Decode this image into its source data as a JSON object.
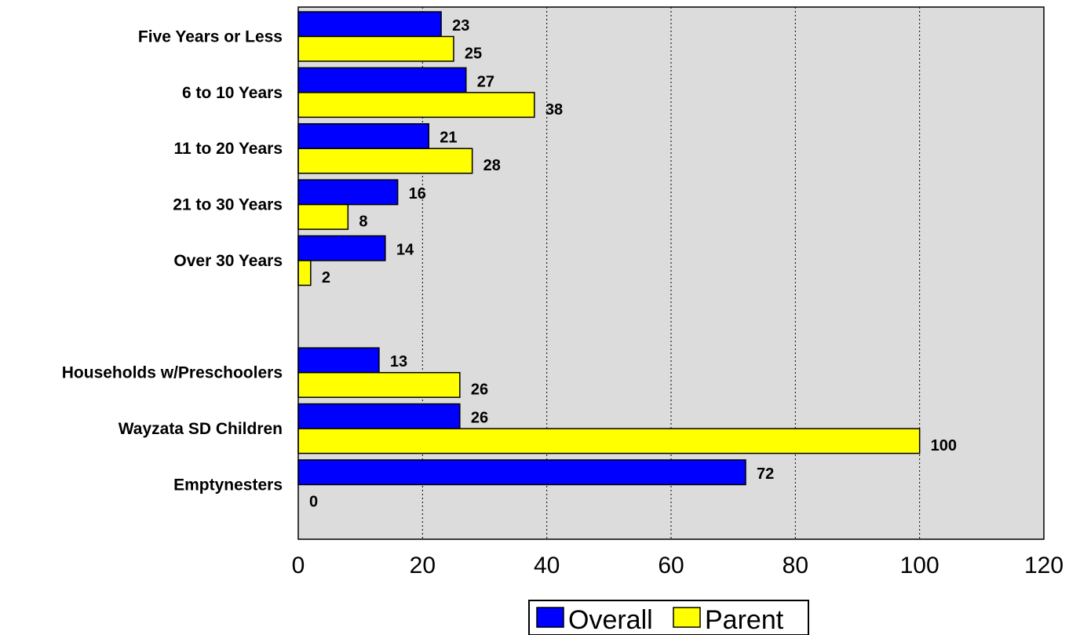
{
  "chart_data": {
    "type": "bar",
    "orientation": "horizontal",
    "categories": [
      "Five Years or Less",
      "6 to 10 Years",
      "11 to 20 Years",
      "21 to 30 Years",
      "Over 30 Years",
      "",
      "Households w/Preschoolers",
      "Wayzata SD Children",
      "Emptynesters"
    ],
    "series": [
      {
        "name": "Overall",
        "color": "#0000ff",
        "values": [
          23,
          27,
          21,
          16,
          14,
          null,
          13,
          26,
          72
        ]
      },
      {
        "name": "Parent",
        "color": "#ffff00",
        "values": [
          25,
          38,
          28,
          8,
          2,
          null,
          26,
          100,
          0
        ]
      }
    ],
    "xlim": [
      0,
      120
    ],
    "xticks": [
      "0",
      "20",
      "40",
      "60",
      "80",
      "100",
      "120"
    ],
    "grid": "vertical-dotted",
    "plot_background": "#dcdcdc",
    "legend_position": "bottom-center"
  }
}
